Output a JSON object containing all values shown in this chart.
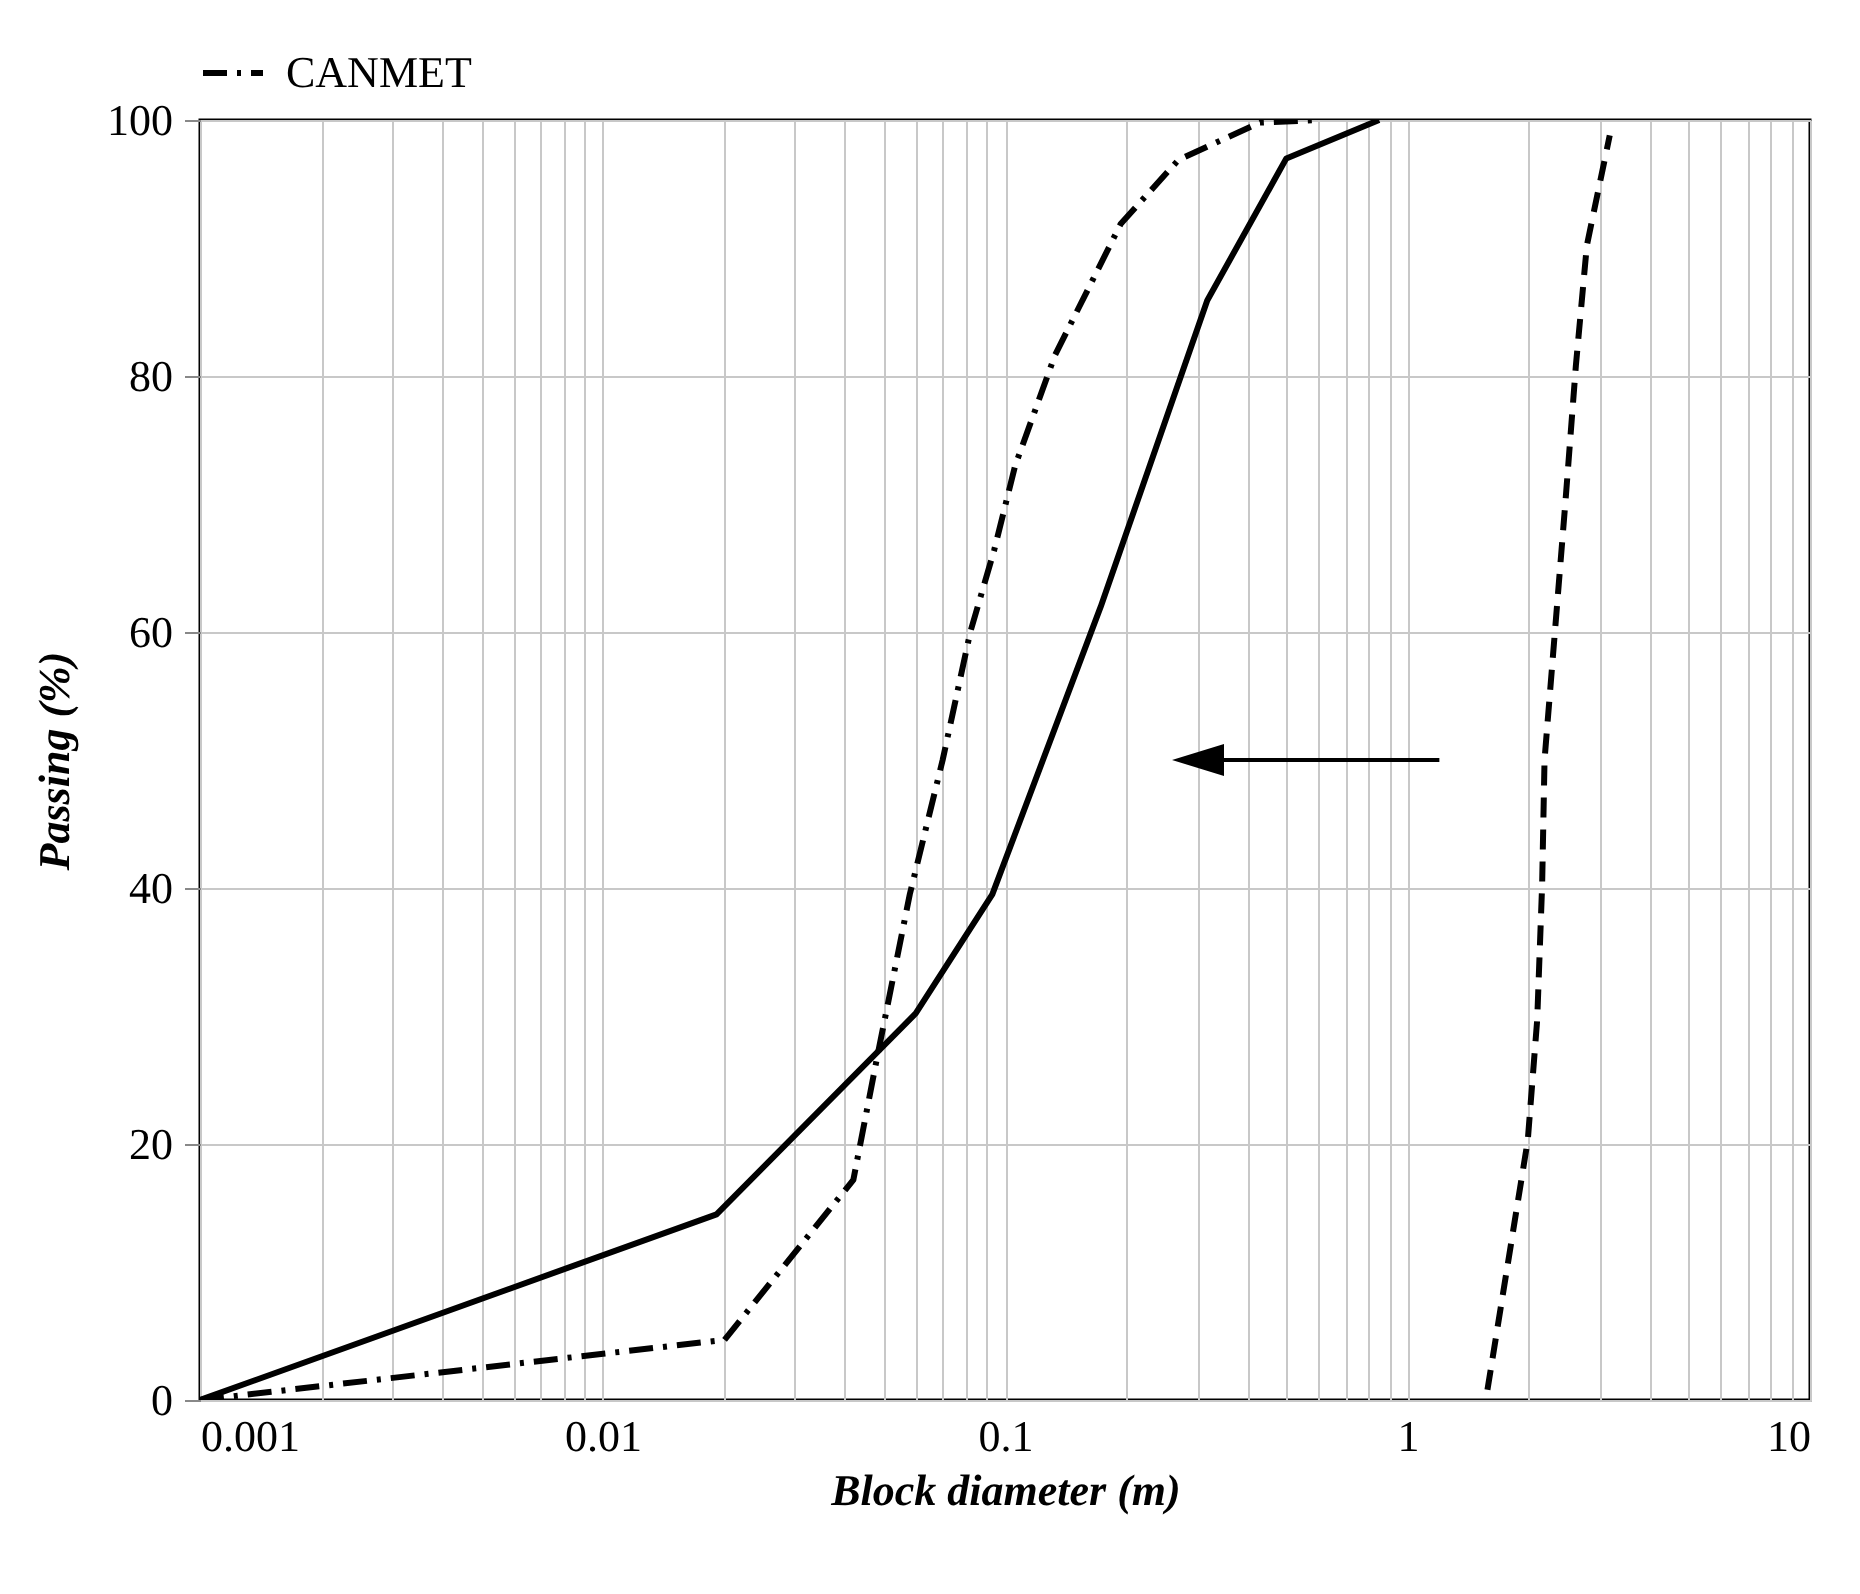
{
  "chart_data": {
    "type": "line",
    "xlabel": "Block diameter (m)",
    "ylabel": "Passing (%)",
    "log": "x",
    "xlim": [
      0.001,
      10
    ],
    "ylim": [
      0,
      100
    ],
    "xticks": [
      0.001,
      {
        "value": 0.002,
        "label": null
      },
      {
        "value": 0.003,
        "label": null
      },
      {
        "value": 0.004,
        "label": null
      },
      {
        "value": 0.005,
        "label": null
      },
      {
        "value": 0.006,
        "label": null
      },
      {
        "value": 0.007,
        "label": null
      },
      {
        "value": 0.008,
        "label": null
      },
      {
        "value": 0.009,
        "label": null
      },
      0.01,
      {
        "value": 0.02,
        "label": null
      },
      {
        "value": 0.03,
        "label": null
      },
      {
        "value": 0.04,
        "label": null
      },
      {
        "value": 0.05,
        "label": null
      },
      {
        "value": 0.06,
        "label": null
      },
      {
        "value": 0.07,
        "label": null
      },
      {
        "value": 0.08,
        "label": null
      },
      {
        "value": 0.09,
        "label": null
      },
      0.1,
      {
        "value": 0.2,
        "label": null
      },
      {
        "value": 0.3,
        "label": null
      },
      {
        "value": 0.4,
        "label": null
      },
      {
        "value": 0.5,
        "label": null
      },
      {
        "value": 0.6,
        "label": null
      },
      {
        "value": 0.7,
        "label": null
      },
      {
        "value": 0.8,
        "label": null
      },
      {
        "value": 0.9,
        "label": null
      },
      1,
      {
        "value": 2,
        "label": null
      },
      {
        "value": 3,
        "label": null
      },
      {
        "value": 4,
        "label": null
      },
      {
        "value": 5,
        "label": null
      },
      {
        "value": 6,
        "label": null
      },
      {
        "value": 7,
        "label": null
      },
      {
        "value": 8,
        "label": null
      },
      {
        "value": 9,
        "label": null
      },
      10
    ],
    "yticks": [
      0,
      20,
      40,
      60,
      80,
      100
    ],
    "grid": true,
    "legend": "top",
    "marker": "none",
    "series": [
      {
        "color": "#000000",
        "line_style": "dashed",
        "x": [
          1.58,
          1.99,
          2.1,
          2.16,
          2.19,
          2.47,
          2.62,
          2.79,
          3.18
        ],
        "values": [
          0.8,
          20.3,
          29.7,
          40.2,
          50,
          70.3,
          80.8,
          90.2,
          98.8
        ]
      },
      {
        "color": "#000000",
        "line_style": "solid",
        "x": [
          0.001,
          0.0192,
          0.06,
          0.093,
          0.173,
          0.318,
          0.5,
          0.85
        ],
        "values": [
          0,
          14.5,
          30.2,
          39.5,
          62,
          85.9,
          97,
          100
        ]
      },
      {
        "name": "CANMET",
        "color": "#000000",
        "line_style": "dashdot",
        "x": [
          0.001,
          0.0201,
          0.042,
          0.048,
          0.058,
          0.07,
          0.082,
          0.094,
          0.106,
          0.133,
          0.194,
          0.27,
          0.43,
          0.6
        ],
        "values": [
          0,
          4.7,
          17.2,
          26.6,
          39.5,
          50,
          60,
          66.4,
          73,
          81.6,
          91.9,
          96.9,
          99.8,
          100
        ]
      }
    ]
  }
}
